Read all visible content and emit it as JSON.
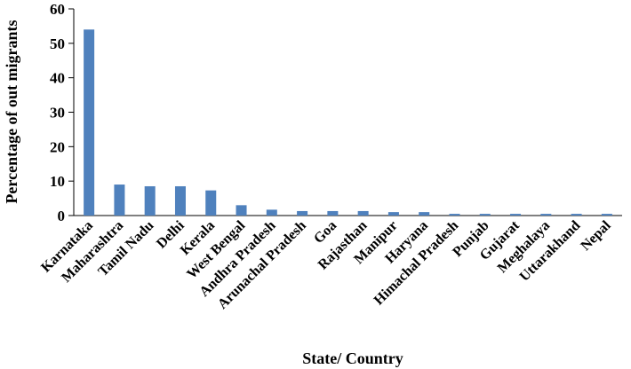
{
  "chart_data": {
    "type": "bar",
    "title": "",
    "xlabel": "State/ Country",
    "ylabel": "Percentage of out migrants",
    "ylim": [
      0,
      60
    ],
    "yticks": [
      0,
      10,
      20,
      30,
      40,
      50,
      60
    ],
    "grid": false,
    "legend": "none",
    "bar_color": "#4F81BD",
    "categories": [
      "Karnataka",
      "Maharashtra",
      "Tamil Nadu",
      "Delhi",
      "Kerala",
      "West Bengal",
      "Andhra Pradesh",
      "Arunachal Pradesh",
      "Goa",
      "Rajasthan",
      "Manipur",
      "Haryana",
      "Himachal Pradesh",
      "Punjab",
      "Gujarat",
      "Meghalaya",
      "Uttarakhand",
      "Nepal"
    ],
    "values": [
      54,
      9,
      8.5,
      8.5,
      7.3,
      3,
      1.7,
      1.3,
      1.3,
      1.3,
      1,
      1,
      0.5,
      0.5,
      0.5,
      0.5,
      0.5,
      0.5
    ]
  }
}
